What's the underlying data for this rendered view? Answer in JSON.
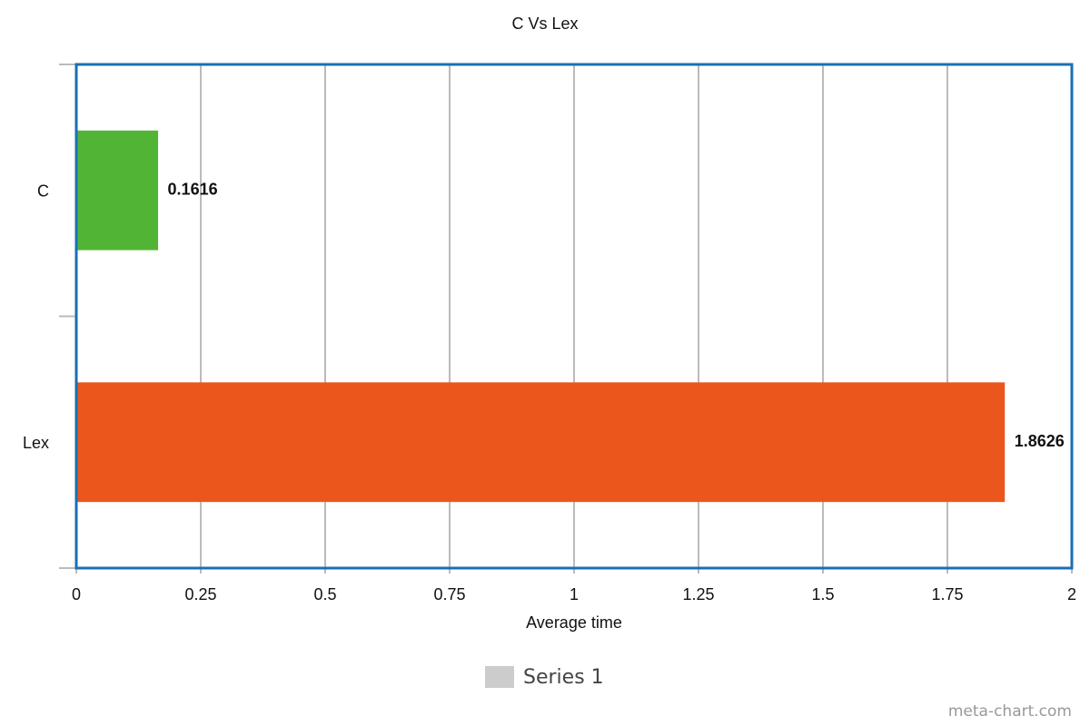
{
  "chart_data": {
    "type": "bar",
    "orientation": "horizontal",
    "title": "C Vs Lex",
    "categories": [
      "C",
      "Lex"
    ],
    "series": [
      {
        "name": "Series 1",
        "color": "#cccccc",
        "values": [
          0.1616,
          1.8626
        ]
      }
    ],
    "bar_colors": [
      "#52b435",
      "#eb561c"
    ],
    "xlabel": "Average time",
    "xlim": [
      0,
      2
    ],
    "xticks": [
      0,
      0.25,
      0.5,
      0.75,
      1,
      1.25,
      1.5,
      1.75,
      2
    ],
    "grid": true,
    "legend": "bottom",
    "watermark": "meta-chart.com"
  }
}
